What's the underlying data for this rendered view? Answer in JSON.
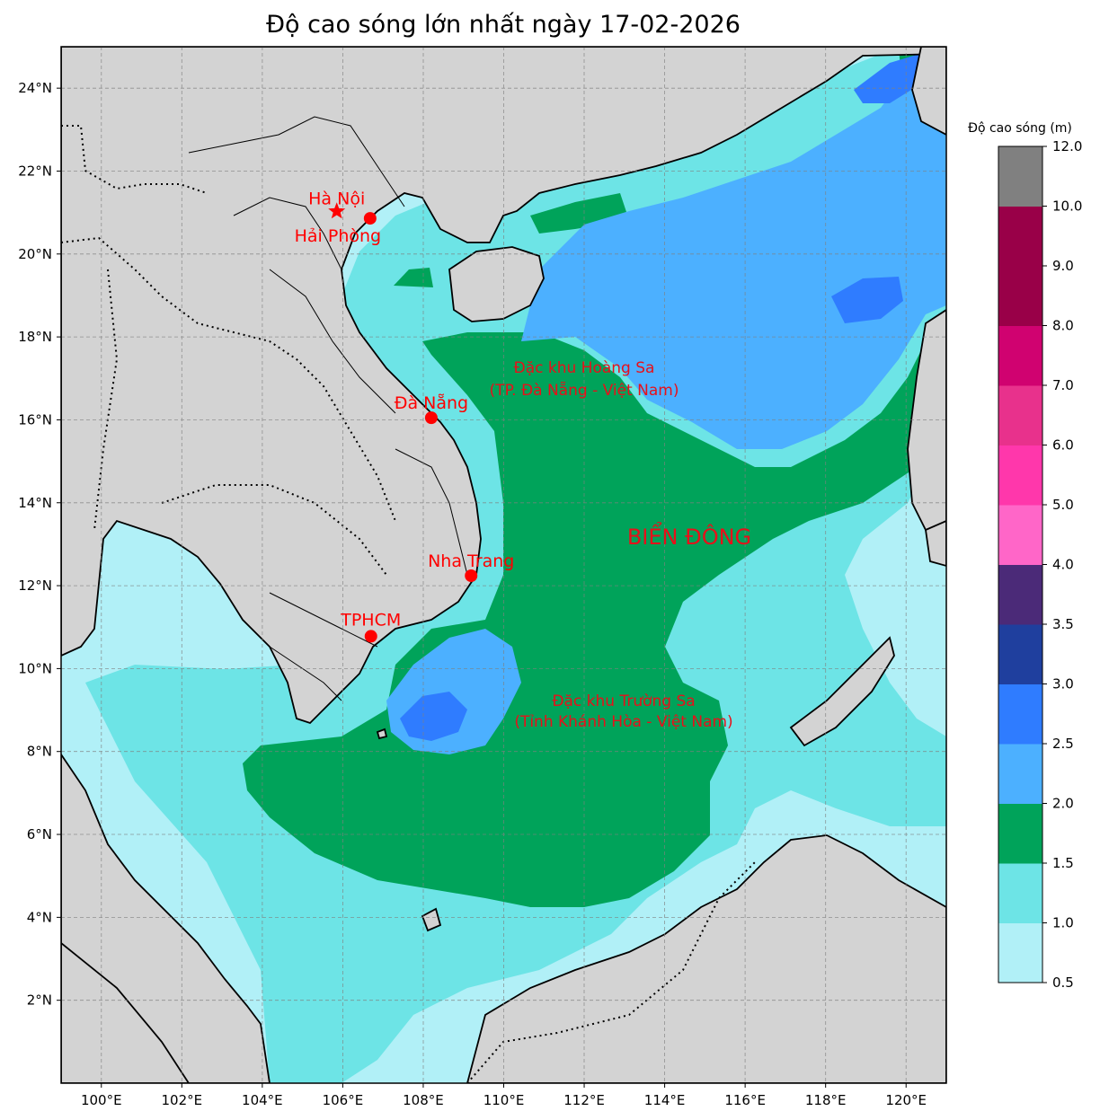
{
  "title": "Độ cao sóng lớn nhất ngày 17-02-2026",
  "colorbar": {
    "title": "Độ cao sóng (m)",
    "bins": [
      {
        "from": 0.5,
        "to": 1.0,
        "color": "#b1f0f7"
      },
      {
        "from": 1.0,
        "to": 1.5,
        "color": "#6de4e6"
      },
      {
        "from": 1.5,
        "to": 2.0,
        "color": "#00a35a"
      },
      {
        "from": 2.0,
        "to": 2.5,
        "color": "#4cb0ff"
      },
      {
        "from": 2.5,
        "to": 3.0,
        "color": "#2f7cff"
      },
      {
        "from": 3.0,
        "to": 3.5,
        "color": "#1f3f9e"
      },
      {
        "from": 3.5,
        "to": 4.0,
        "color": "#4b2a78"
      },
      {
        "from": 4.0,
        "to": 5.0,
        "color": "#ff66c8"
      },
      {
        "from": 5.0,
        "to": 6.0,
        "color": "#ff37ab"
      },
      {
        "from": 6.0,
        "to": 7.0,
        "color": "#e8318c"
      },
      {
        "from": 7.0,
        "to": 8.0,
        "color": "#d00270"
      },
      {
        "from": 8.0,
        "to": 9.0,
        "color": "#990048"
      },
      {
        "from": 9.0,
        "to": 10.0,
        "color": "#808080"
      }
    ],
    "tick_labels": [
      "0.5",
      "1.0",
      "1.5",
      "2.0",
      "2.5",
      "3.0",
      "3.5",
      "4.0",
      "5.0",
      "6.0",
      "7.0",
      "8.0",
      "9.0",
      "10.0",
      "12.0"
    ]
  },
  "map": {
    "lon_range": [
      99,
      121
    ],
    "lat_range": [
      0,
      25
    ],
    "lon_ticks": [
      "100°E",
      "102°E",
      "104°E",
      "106°E",
      "108°E",
      "110°E",
      "112°E",
      "114°E",
      "116°E",
      "118°E",
      "120°E"
    ],
    "lat_ticks": [
      "2°N",
      "4°N",
      "6°N",
      "8°N",
      "10°N",
      "12°N",
      "14°N",
      "16°N",
      "18°N",
      "20°N",
      "22°N",
      "24°N"
    ],
    "gridlines": true,
    "land_color": "#d3d3d3"
  },
  "cities": [
    {
      "name": "Hà Nội",
      "lon": 105.85,
      "lat": 21.03,
      "marker": "star"
    },
    {
      "name": "Hải Phòng",
      "lon": 106.68,
      "lat": 20.86,
      "marker": "circle"
    },
    {
      "name": "Đà Nẵng",
      "lon": 108.2,
      "lat": 16.05,
      "marker": "circle"
    },
    {
      "name": "Nha Trang",
      "lon": 109.19,
      "lat": 12.24,
      "marker": "circle"
    },
    {
      "name": "TPHCM",
      "lon": 106.7,
      "lat": 10.78,
      "marker": "circle"
    }
  ],
  "regions": [
    {
      "line1": "Đặc khu Hoàng Sa",
      "line2": "(TP. Đà Nẵng - Việt Nam)"
    },
    {
      "line1": "Đặc khu Trường Sa",
      "line2": "(Tỉnh Khánh Hòa - Việt Nam)"
    }
  ],
  "sea_label": "BIỂN ĐÔNG",
  "colors": {
    "marker": "#ff0000"
  }
}
